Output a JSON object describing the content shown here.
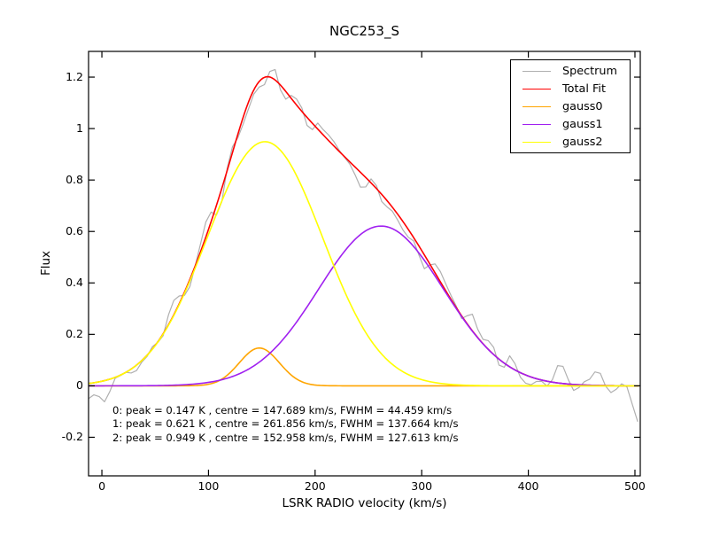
{
  "window": {
    "background": "#ffffff",
    "frame_color": "#000000"
  },
  "chart_data": {
    "type": "line",
    "title": "NGC253_S",
    "xlabel": "LSRK RADIO velocity (km/s)",
    "ylabel": "Flux",
    "xlim": [
      -12.5,
      505
    ],
    "ylim": [
      -0.35,
      1.3
    ],
    "xticks": {
      "values": [
        0,
        100,
        200,
        300,
        400,
        500
      ],
      "labels": [
        "0",
        "100",
        "200",
        "300",
        "400",
        "500"
      ]
    },
    "yticks": {
      "values": [
        -0.2,
        0,
        0.2,
        0.4,
        0.6,
        0.8,
        1.0,
        1.2
      ],
      "labels": [
        "-0.2",
        "0",
        "0.2",
        "0.4",
        "0.6",
        "0.8",
        "1",
        "1.2"
      ]
    },
    "grid": false,
    "legend_position": "upper right",
    "series": [
      {
        "name": "Spectrum",
        "color": "#b0b0b0",
        "kind": "noisy_spectrum",
        "model": "total_fit_plus_noise",
        "channel_width_kms": 5,
        "noise_sigma": 0.034,
        "noise_seed": 11,
        "peak_K_approx": 1.29
      },
      {
        "name": "Total Fit",
        "color": "#ff0000",
        "kind": "sum_of_gaussians",
        "peak_K_approx": 1.2
      },
      {
        "name": "gauss0",
        "color": "#ffa500",
        "kind": "gaussian",
        "peak_K": 0.147,
        "centre_kms": 147.689,
        "fwhm_kms": 44.459
      },
      {
        "name": "gauss1",
        "color": "#a020f0",
        "kind": "gaussian",
        "peak_K": 0.621,
        "centre_kms": 261.856,
        "fwhm_kms": 137.664
      },
      {
        "name": "gauss2",
        "color": "#ffff00",
        "kind": "gaussian",
        "peak_K": 0.949,
        "centre_kms": 152.958,
        "fwhm_kms": 127.613
      }
    ],
    "annotation": {
      "lines": [
        "0: peak = 0.147 K , centre = 147.689 km/s, FWHM = 44.459 km/s",
        "1: peak = 0.621 K , centre = 261.856 km/s, FWHM = 137.664 km/s",
        "2: peak = 0.949 K , centre = 152.958 km/s, FWHM = 127.613 km/s"
      ]
    }
  }
}
